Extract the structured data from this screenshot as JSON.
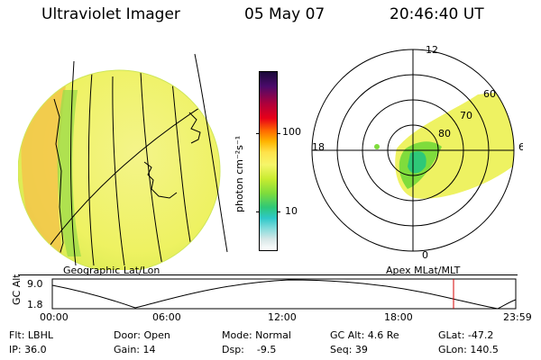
{
  "header": {
    "instrument": "Ultraviolet Imager",
    "date": "05 May 07",
    "time": "20:46:40 UT"
  },
  "colorbar": {
    "unit_label": "photon cm⁻²s⁻¹",
    "ticks": [
      "100",
      "10"
    ],
    "colors": [
      "#1a0a3a",
      "#b0003a",
      "#ff6a00",
      "#ffe24a",
      "#c8ec30",
      "#2ec878",
      "#2ec8c8",
      "#ffffff"
    ]
  },
  "left_image": {
    "caption": "Geographic Lat/Lon"
  },
  "polar_plot": {
    "caption": "Apex MLat/MLT",
    "mlt_labels": {
      "top": "12",
      "left": "18",
      "right": "6",
      "bottom": "0"
    },
    "lat_labels": [
      "60",
      "70",
      "80"
    ]
  },
  "altitude_panel": {
    "ylabel": "GC Alt",
    "yticks": [
      "9.0",
      "1.8"
    ],
    "xticks": [
      "00:00",
      "06:00",
      "12:00",
      "18:00",
      "23:59"
    ],
    "current_marker_time": "20:46"
  },
  "status": {
    "flt": "Flt: LBHL",
    "door": "Door: Open",
    "mode": "Mode: Normal",
    "gc_alt": "GC Alt: 4.6 Re",
    "glat": "GLat: -47.2",
    "ip": "IP: 36.0",
    "gain": "Gain: 14",
    "dsp": "Dsp:    -9.5",
    "seq": "Seq: 39",
    "glon": "GLon: 140.5"
  }
}
